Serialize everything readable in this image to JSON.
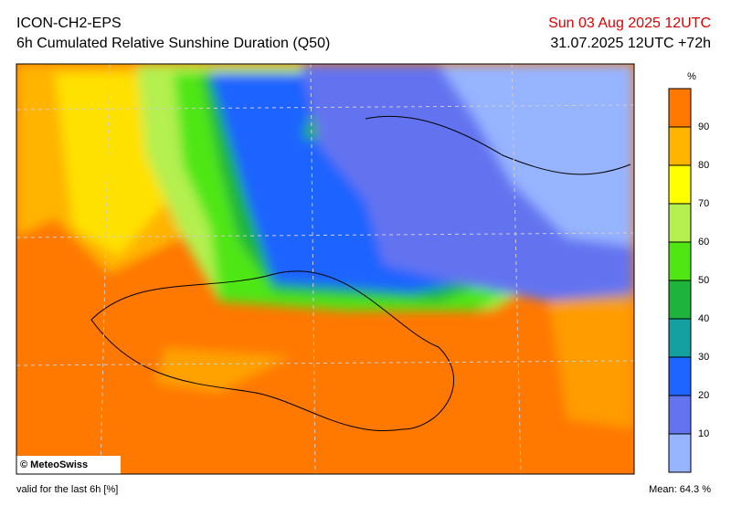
{
  "header": {
    "model": "ICON-CH2-EPS",
    "title": "6h Cumulated Relative Sunshine Duration (Q50)",
    "valid_date": "Sun 03 Aug 2025 12UTC",
    "run": "31.07.2025 12UTC +72h"
  },
  "legend": {
    "unit": "%",
    "ticks": [
      10,
      20,
      30,
      40,
      50,
      60,
      70,
      80,
      90
    ],
    "colors": [
      "#96b4ff",
      "#6473f0",
      "#1e64ff",
      "#14a0a0",
      "#1eb43c",
      "#50e614",
      "#b4f050",
      "#ffff00",
      "#ffb400",
      "#ff7800"
    ]
  },
  "credit": "© MeteoSwiss",
  "footer": {
    "note": "valid for the last 6h [%]",
    "mean": "Mean:  64.3 %"
  }
}
